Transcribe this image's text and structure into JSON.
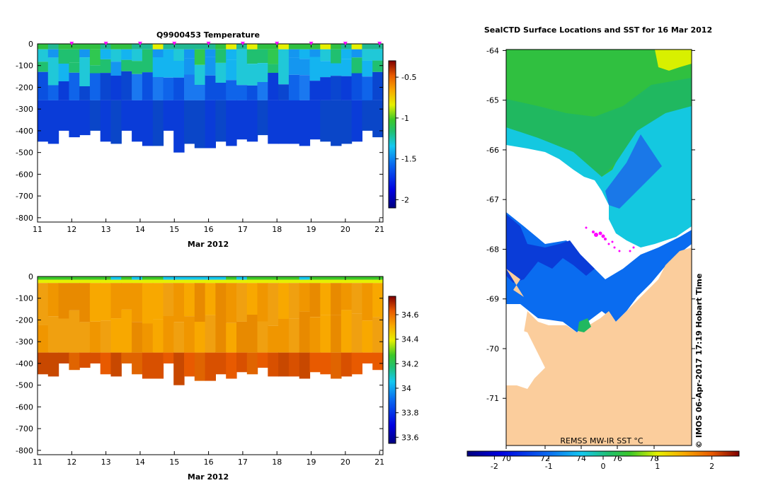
{
  "chart_data": [
    {
      "type": "heatmap",
      "title": "Q9900453  Temperature",
      "xlabel": "Mar 2012",
      "ylabel": "",
      "xlim": [
        11,
        21.1
      ],
      "ylim": [
        -820,
        0
      ],
      "x_ticks": [
        11,
        12,
        13,
        14,
        15,
        16,
        17,
        18,
        19,
        20,
        21
      ],
      "x_tick_labels": [
        "11",
        "12",
        "13",
        "14",
        "15",
        "16",
        "17",
        "18",
        "19",
        "20",
        "21"
      ],
      "y_ticks": [
        0,
        -100,
        -200,
        -300,
        -400,
        -500,
        -600,
        -700,
        -800
      ],
      "y_tick_labels": [
        "0",
        "-100",
        "-200",
        "-300",
        "-400",
        "-500",
        "-600",
        "-700",
        "-800"
      ],
      "colorbar_range": [
        -2.1,
        -0.3
      ],
      "colorbar_ticks": [
        -0.5,
        -1,
        -1.5,
        -2
      ],
      "colorbar_labels": [
        "-0.5",
        "-1",
        "-1.5",
        "-2"
      ],
      "profile_markers_x": [
        12,
        13,
        14,
        15,
        16,
        17,
        18,
        19,
        20,
        21
      ],
      "profile_bottom_depths": [
        -450,
        -460,
        -400,
        -430,
        -420,
        -400,
        -450,
        -460,
        -400,
        -450,
        -470,
        -470,
        -400,
        -500,
        -460,
        -480,
        -480,
        -450,
        -470,
        -440,
        -450,
        -420,
        -460,
        -460,
        -460,
        -470,
        -440,
        -450,
        -470,
        -460,
        -450,
        -400,
        -430
      ],
      "grid": false
    },
    {
      "type": "heatmap",
      "title": "",
      "xlabel": "Mar 2012",
      "ylabel": "",
      "xlim": [
        11,
        21.1
      ],
      "ylim": [
        -820,
        0
      ],
      "x_ticks": [
        11,
        12,
        13,
        14,
        15,
        16,
        17,
        18,
        19,
        20,
        21
      ],
      "x_tick_labels": [
        "11",
        "12",
        "13",
        "14",
        "15",
        "16",
        "17",
        "18",
        "19",
        "20",
        "21"
      ],
      "y_ticks": [
        0,
        -100,
        -200,
        -300,
        -400,
        -500,
        -600,
        -700,
        -800
      ],
      "y_tick_labels": [
        "0",
        "-100",
        "-200",
        "-300",
        "-400",
        "-500",
        "-600",
        "-700",
        "-800"
      ],
      "colorbar_range": [
        33.55,
        34.75
      ],
      "colorbar_ticks": [
        34.6,
        34.4,
        34.2,
        34,
        33.8,
        33.6
      ],
      "colorbar_labels": [
        "34.6",
        "34.4",
        "34.2",
        "34",
        "33.8",
        "33.6"
      ],
      "grid": false
    },
    {
      "type": "heatmap",
      "title": "SealCTD Surface Locations and SST for 16 Mar 2012",
      "xlabel": "",
      "ylabel": "",
      "ylim": [
        -71.95,
        -63.98
      ],
      "y_ticks": [
        -64,
        -65,
        -66,
        -67,
        -68,
        -69,
        -70,
        -71
      ],
      "y_tick_labels": [
        "-64",
        "-65",
        "-66",
        "-67",
        "-68",
        "-69",
        "-70",
        "-71"
      ],
      "x_ticks": [
        70,
        72,
        74,
        76,
        78
      ],
      "x_tick_labels": [
        "70",
        "72",
        "74",
        "76",
        "78"
      ],
      "colorbar_title": "REMSS MW-IR SST °C",
      "colorbar_range": [
        -2.5,
        2.5
      ],
      "colorbar_ticks": [
        -2,
        -1,
        0,
        1,
        2
      ],
      "colorbar_labels": [
        "-2",
        "-1",
        "0",
        "1",
        "2"
      ],
      "credit": "© IMOS 06-Apr-2017 17:19 Hobart Time",
      "grid": false
    }
  ]
}
